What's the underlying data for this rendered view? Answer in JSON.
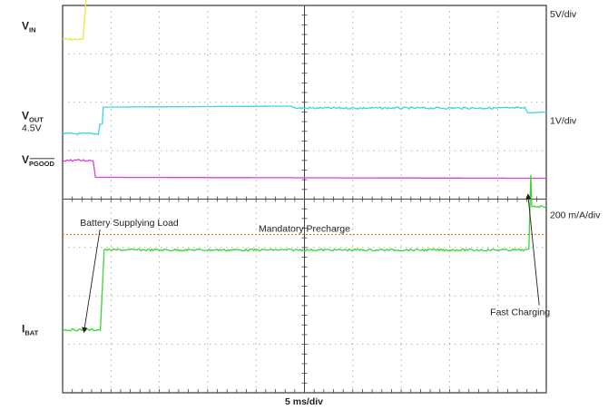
{
  "chart_data": {
    "type": "line",
    "title": "",
    "xlabel": "5 ms/div",
    "ylabel": "",
    "x_unit": "ms",
    "x_divisions": 10,
    "ms_per_div": 5,
    "xlim": [
      0,
      50
    ],
    "y_divisions": 8,
    "ylim": [
      0,
      8
    ],
    "grid": true,
    "series": [
      {
        "name": "V_IN",
        "label_main": "V",
        "label_sub": "IN",
        "scale": "5V/div",
        "color": "#e8e83a",
        "points": [
          [
            0,
            7.3
          ],
          [
            1.9,
            7.3
          ],
          [
            2.1,
            7.3
          ],
          [
            2.5,
            8.3
          ],
          [
            50,
            8.3
          ]
        ]
      },
      {
        "name": "V_OUT",
        "label_main": "V",
        "label_sub": "OUT",
        "label_extra": "4.5V",
        "scale": "1V/div",
        "color": "#3cd6dc",
        "points": [
          [
            0,
            5.35
          ],
          [
            3.7,
            5.35
          ],
          [
            3.85,
            5.55
          ],
          [
            4.1,
            5.55
          ],
          [
            4.2,
            5.9
          ],
          [
            23.6,
            5.92
          ],
          [
            24.1,
            5.88
          ],
          [
            47.8,
            5.88
          ],
          [
            48.1,
            5.78
          ],
          [
            50,
            5.8
          ]
        ]
      },
      {
        "name": "V_PGOOD",
        "label_main": "V",
        "label_sub": "PGOOD",
        "scale": "",
        "color": "#d940d6",
        "points": [
          [
            0,
            4.8
          ],
          [
            3.15,
            4.8
          ],
          [
            3.4,
            4.45
          ],
          [
            50,
            4.43
          ]
        ]
      },
      {
        "name": "I_BAT",
        "label_main": "I",
        "label_sub": "BAT",
        "scale": "200 m/A/div",
        "color": "#3fd23a",
        "points": [
          [
            0,
            1.3
          ],
          [
            3.9,
            1.3
          ],
          [
            4.3,
            2.95
          ],
          [
            48.2,
            2.95
          ],
          [
            48.4,
            4.5
          ],
          [
            48.5,
            3.85
          ],
          [
            50,
            3.85
          ]
        ]
      }
    ],
    "reference_lines": [
      {
        "label": "Mandatory Precharge",
        "y": 3.27,
        "color": "#d98020",
        "style": "dotted"
      }
    ],
    "annotations": [
      {
        "text": "Battery Supplying Load",
        "text_x": 1.8,
        "text_y": 3.45,
        "arrow_to": [
          2.2,
          1.25
        ]
      },
      {
        "text": "Fast Charging",
        "text_x": 44.2,
        "text_y": 1.6,
        "arrow_to": [
          48.1,
          4.1
        ]
      }
    ]
  }
}
